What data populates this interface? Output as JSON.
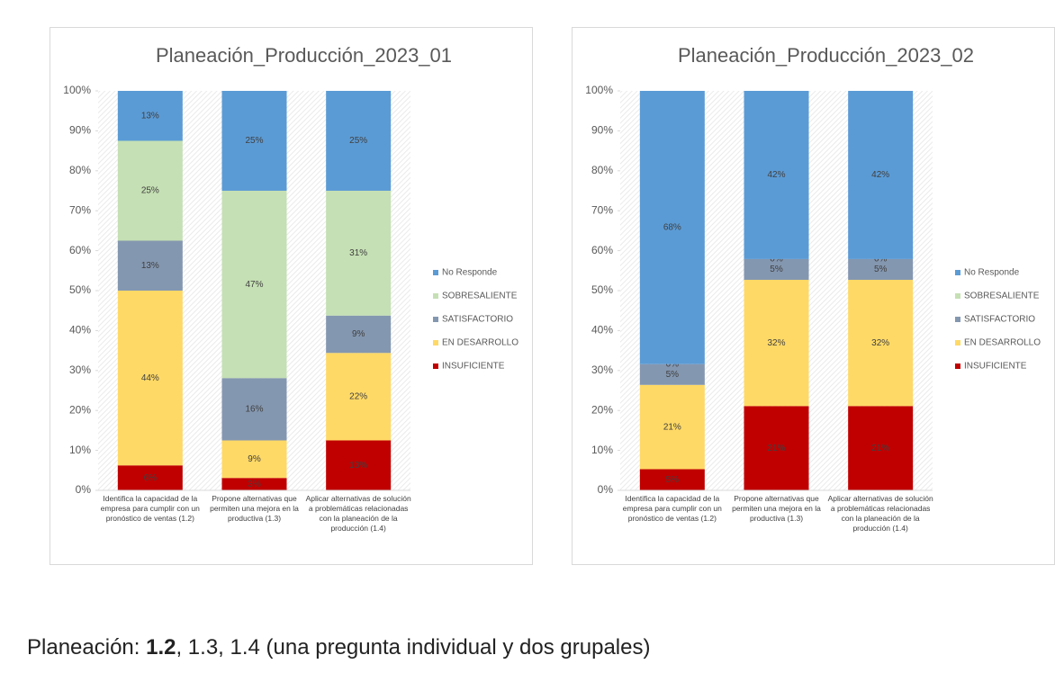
{
  "chart_data": [
    {
      "type": "bar",
      "stacked": true,
      "title": "Planeación_Producción_2023_01",
      "categories": [
        "Identifica la capacidad de la empresa para cumplir con un pronóstico de ventas (1.2)",
        "Propone alternativas que permiten una mejora en la productiva (1.3)",
        "Aplicar alternativas de solución a problemáticas relacionadas con la planeación de la producción (1.4)"
      ],
      "series": [
        {
          "name": "INSUFICIENTE",
          "color": "#c00000",
          "values": [
            6.25,
            3.1,
            12.5
          ],
          "value_labels": [
            "6%",
            "3%",
            "13%"
          ]
        },
        {
          "name": "EN DESARROLLO",
          "color": "#ffd966",
          "values": [
            43.75,
            9.4,
            21.9
          ],
          "value_labels": [
            "44%",
            "9%",
            "22%"
          ]
        },
        {
          "name": "SATISFACTORIO",
          "color": "#8497b0",
          "values": [
            12.5,
            15.6,
            9.35
          ],
          "value_labels": [
            "13%",
            "16%",
            "9%"
          ]
        },
        {
          "name": "SOBRESALIENTE",
          "color": "#c5e0b4",
          "values": [
            25,
            46.9,
            31.25
          ],
          "value_labels": [
            "25%",
            "47%",
            "31%"
          ]
        },
        {
          "name": "No Responde",
          "color": "#5b9bd5",
          "values": [
            12.5,
            25,
            25
          ],
          "value_labels": [
            "13%",
            "25%",
            "25%"
          ]
        }
      ],
      "ylim": [
        0,
        100
      ],
      "yticks": [
        {
          "value": 0,
          "label": "0%"
        },
        {
          "value": 10,
          "label": "10%"
        },
        {
          "value": 20,
          "label": "20%"
        },
        {
          "value": 30,
          "label": "30%"
        },
        {
          "value": 40,
          "label": "40%"
        },
        {
          "value": 50,
          "label": "50%"
        },
        {
          "value": 60,
          "label": "60%"
        },
        {
          "value": 70,
          "label": "70%"
        },
        {
          "value": 80,
          "label": "80%"
        },
        {
          "value": 90,
          "label": "90%"
        },
        {
          "value": 100,
          "label": "100%"
        }
      ],
      "legend": "right"
    },
    {
      "type": "bar",
      "stacked": true,
      "title": "Planeación_Producción_2023_02",
      "categories": [
        "Identifica la capacidad de la empresa para cumplir con un pronóstico de ventas (1.2)",
        "Propone alternativas que permiten una mejora en la productiva (1.3)",
        "Aplicar alternativas de solución a problemáticas relacionadas con la planeación de la producción (1.4)"
      ],
      "series": [
        {
          "name": "INSUFICIENTE",
          "color": "#c00000",
          "values": [
            5.3,
            21.1,
            21.1
          ],
          "value_labels": [
            "5%",
            "21%",
            "21%"
          ]
        },
        {
          "name": "EN DESARROLLO",
          "color": "#ffd966",
          "values": [
            21.1,
            31.6,
            31.6
          ],
          "value_labels": [
            "21%",
            "32%",
            "32%"
          ]
        },
        {
          "name": "SATISFACTORIO",
          "color": "#8497b0",
          "values": [
            5.2,
            5.2,
            5.2
          ],
          "value_labels": [
            "5%",
            "5%",
            "5%"
          ]
        },
        {
          "name": "SOBRESALIENTE",
          "color": "#c5e0b4",
          "values": [
            0,
            0,
            0
          ],
          "value_labels": [
            "0%",
            "0%",
            "0%"
          ]
        },
        {
          "name": "No Responde",
          "color": "#5b9bd5",
          "values": [
            68.4,
            42.1,
            42.1
          ],
          "value_labels": [
            "68%",
            "42%",
            "42%"
          ]
        }
      ],
      "ylim": [
        0,
        100
      ],
      "yticks": [
        {
          "value": 0,
          "label": "0%"
        },
        {
          "value": 10,
          "label": "10%"
        },
        {
          "value": 20,
          "label": "20%"
        },
        {
          "value": 30,
          "label": "30%"
        },
        {
          "value": 40,
          "label": "40%"
        },
        {
          "value": 50,
          "label": "50%"
        },
        {
          "value": 60,
          "label": "60%"
        },
        {
          "value": 70,
          "label": "70%"
        },
        {
          "value": 80,
          "label": "80%"
        },
        {
          "value": 90,
          "label": "90%"
        },
        {
          "value": 100,
          "label": "100%"
        }
      ],
      "legend": "right"
    }
  ],
  "caption": {
    "prefix": "Planeación: ",
    "bold": "1.2",
    "rest": ", 1.3, 1.4 (una pregunta individual y dos grupales)"
  }
}
